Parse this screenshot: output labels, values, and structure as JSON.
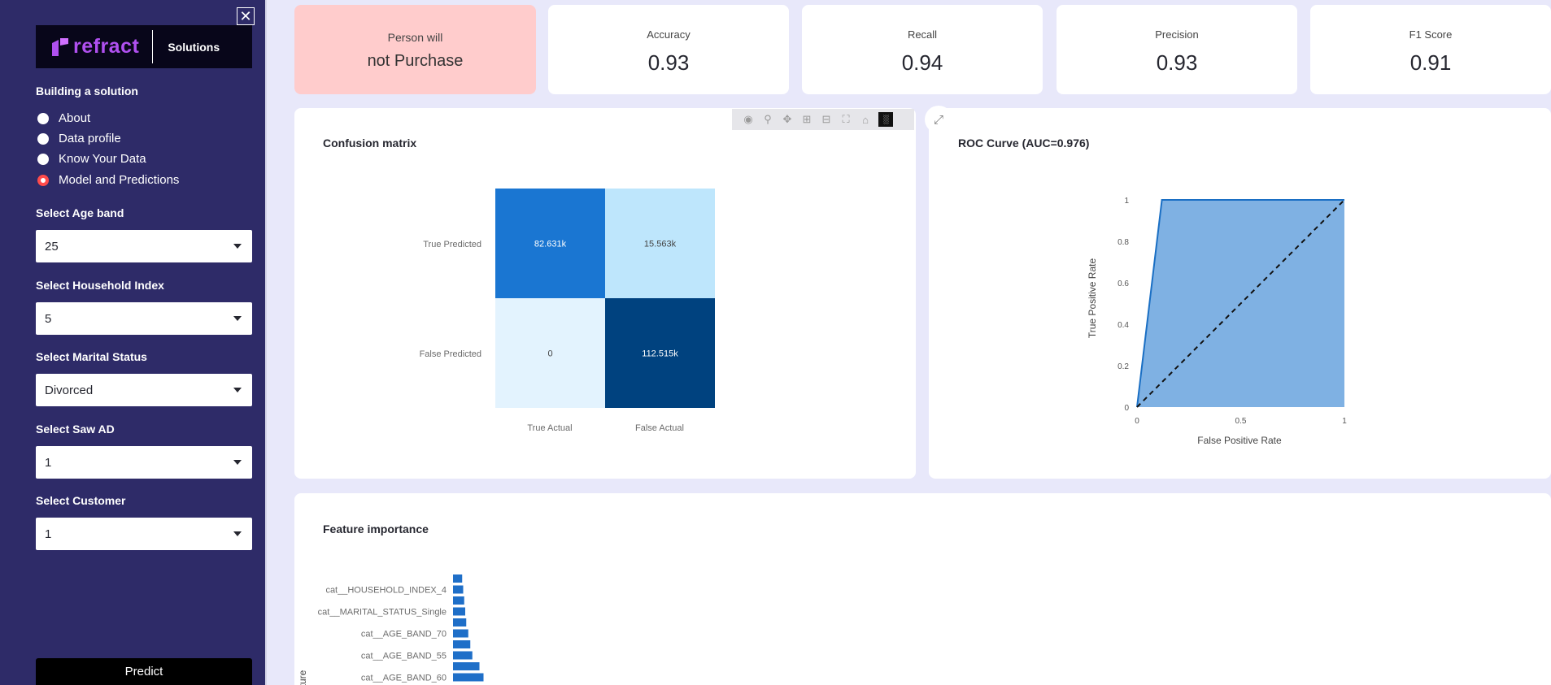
{
  "sidebar": {
    "close_glyph": "✕",
    "logo_text": "refract",
    "logo_sub": "Solutions",
    "heading": "Building a solution",
    "radio_items": [
      {
        "label": "About",
        "selected": false
      },
      {
        "label": "Data profile",
        "selected": false
      },
      {
        "label": "Know Your Data",
        "selected": false
      },
      {
        "label": "Model and Predictions",
        "selected": true
      }
    ],
    "selects": [
      {
        "label": "Select Age band",
        "value": "25"
      },
      {
        "label": "Select Household Index",
        "value": "5"
      },
      {
        "label": "Select Marital Status",
        "value": "Divorced"
      },
      {
        "label": "Select Saw AD",
        "value": "1"
      },
      {
        "label": "Select Customer",
        "value": "1"
      }
    ],
    "predict_label": "Predict"
  },
  "prediction": {
    "label": "Person will",
    "value": "not Purchase"
  },
  "metrics": [
    {
      "label": "Accuracy",
      "value": "0.93"
    },
    {
      "label": "Recall",
      "value": "0.94"
    },
    {
      "label": "Precision",
      "value": "0.93"
    },
    {
      "label": "F1 Score",
      "value": "0.91"
    }
  ],
  "toolbar_icons": [
    "camera-icon",
    "zoom-icon",
    "pan-icon",
    "zoom-in-icon",
    "zoom-out-icon",
    "autoscale-icon",
    "reset-axes-icon",
    "plotly-logo-icon"
  ],
  "colors": {
    "sidebar_bg": "#2e2b68",
    "accent": "#ff4b4b",
    "predict_bg": "#ffcccc",
    "bar": "#1f6fc8"
  },
  "chart_data": [
    {
      "type": "heatmap",
      "title": "Confusion matrix",
      "x": [
        "True Actual",
        "False Actual"
      ],
      "y": [
        "True Predicted",
        "False Predicted"
      ],
      "values": [
        [
          82631,
          15563
        ],
        [
          0,
          112515
        ]
      ],
      "labels": [
        [
          "82.631k",
          "15.563k"
        ],
        [
          "0",
          "112.515k"
        ]
      ],
      "colors": [
        [
          "#1a76d2",
          "#bee6fc"
        ],
        [
          "#e3f3fe",
          "#00427f"
        ]
      ]
    },
    {
      "type": "area",
      "title": "ROC Curve (AUC=0.976)",
      "xlabel": "False Positive Rate",
      "ylabel": "True Positive Rate",
      "xlim": [
        0,
        1
      ],
      "ylim": [
        0,
        1
      ],
      "xticks": [
        "0",
        "0.5",
        "1"
      ],
      "yticks": [
        "0",
        "0.2",
        "0.4",
        "0.6",
        "0.8",
        "1"
      ],
      "series": [
        {
          "x": [
            0,
            0.12,
            1
          ],
          "y": [
            0,
            1,
            1
          ]
        }
      ],
      "diagonal": {
        "x": [
          0,
          1
        ],
        "y": [
          0,
          1
        ]
      }
    },
    {
      "type": "bar",
      "title": "Feature importance",
      "ylabel": "ture",
      "categories": [
        "",
        "cat__HOUSEHOLD_INDEX_4",
        "",
        "cat__MARITAL_STATUS_Single",
        "",
        "cat__AGE_BAND_70",
        "",
        "cat__AGE_BAND_55",
        "",
        "cat__AGE_BAND_60"
      ],
      "values": [
        0.009,
        0.01,
        0.011,
        0.012,
        0.013,
        0.015,
        0.017,
        0.019,
        0.026,
        0.03
      ]
    }
  ]
}
